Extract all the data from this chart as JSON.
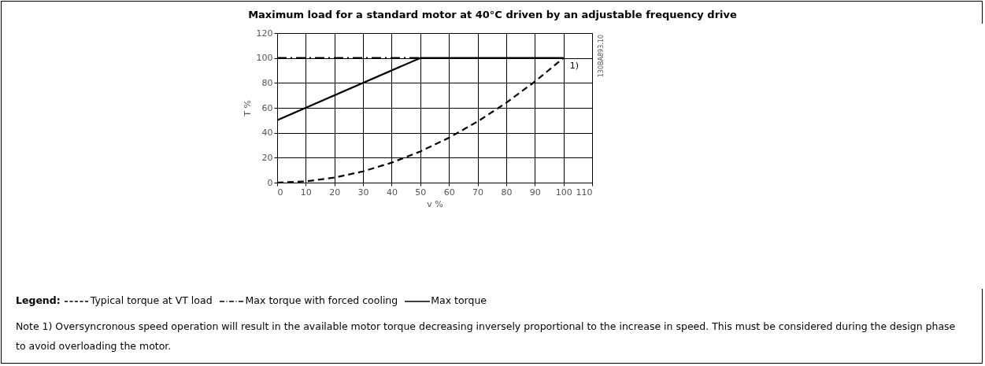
{
  "chart_data": {
    "type": "line",
    "title": "Maximum load for a standard motor at 40°C driven by an adjustable frequency drive",
    "xlabel": "v %",
    "ylabel": "T %",
    "legend_title": "Legend:",
    "series": [
      {
        "name": "Typical torque at VT load",
        "color": "#000000",
        "line_style": "dashed",
        "x": [
          0,
          10,
          20,
          30,
          40,
          50,
          60,
          70,
          80,
          90,
          100
        ],
        "values": [
          0,
          1,
          4,
          9,
          16,
          25,
          36,
          49,
          64,
          81,
          100
        ]
      },
      {
        "name": "Max torque with forced cooling",
        "color": "#000000",
        "line_style": "dashdot",
        "x": [
          0,
          50
        ],
        "values": [
          100,
          100
        ]
      },
      {
        "name": "Max torque",
        "color": "#000000",
        "line_style": "solid",
        "x": [
          0,
          50,
          100
        ],
        "values": [
          50,
          100,
          100
        ]
      }
    ],
    "xlim": [
      0,
      110
    ],
    "xticks": [
      0,
      10,
      20,
      30,
      40,
      50,
      60,
      70,
      80,
      90,
      100,
      110
    ],
    "ylim": [
      0,
      120
    ],
    "yticks": [
      0,
      20,
      40,
      60,
      80,
      100,
      120
    ],
    "grid": true,
    "legend": "bottom",
    "marker": "none",
    "annotations": [
      {
        "text": "1)",
        "x": 100,
        "y": 100
      },
      "130BA893.10",
      "Note 1) Oversyncronous speed operation will result in the available motor torque decreasing inversely proportional to the increase in speed. This must be considered during the design phase to avoid overloading the motor."
    ]
  }
}
